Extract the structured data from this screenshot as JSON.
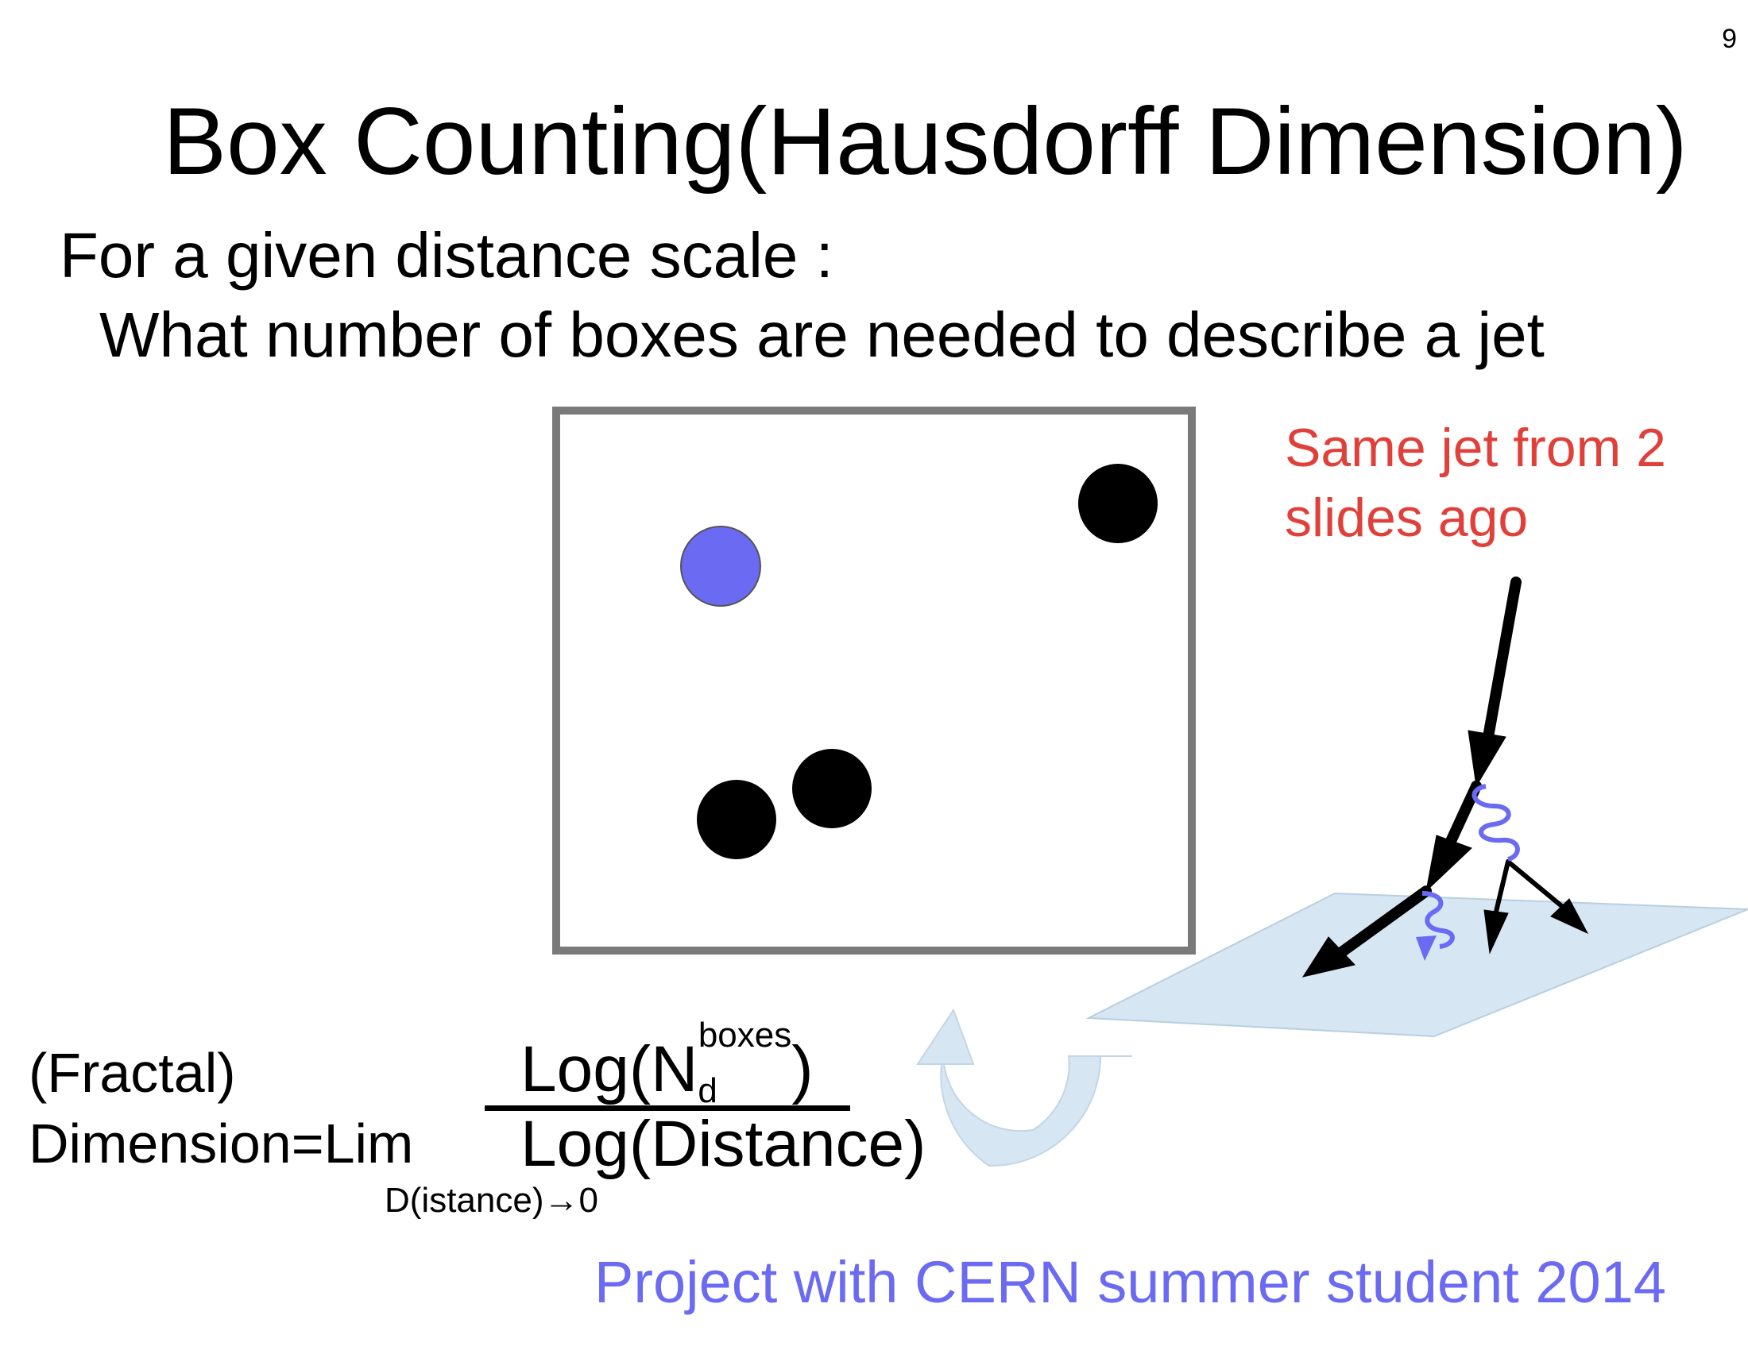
{
  "slide": {
    "page_number": "9",
    "title": "Box Counting(Hausdorff Dimension)",
    "line1": "For a given distance scale :",
    "line2": "What number of boxes are needed to describe a jet",
    "note": "Same jet from 2\nslides ago",
    "footer": "Project with CERN summer student 2014"
  },
  "formula": {
    "fractal": "(Fractal)",
    "dimension_lim": "Dimension=Lim",
    "lim_subscript": "D(istance)→0",
    "numerator_log": "Log(N",
    "numerator_sub": "d",
    "numerator_sup": "boxes",
    "numerator_close": ")",
    "denominator": "Log(Distance)"
  },
  "colors": {
    "note_red": "#e0403a",
    "footer_blue": "#6a6af2",
    "blue_dot": "#6a6af2",
    "box_border": "#7a7a7a",
    "plane_fill": "#d6e6f2",
    "arrow_fill": "#d6e6f2",
    "wavy_line": "#6a6af2"
  },
  "icons": {
    "cycle_arrow": "curved-arrow-icon"
  }
}
